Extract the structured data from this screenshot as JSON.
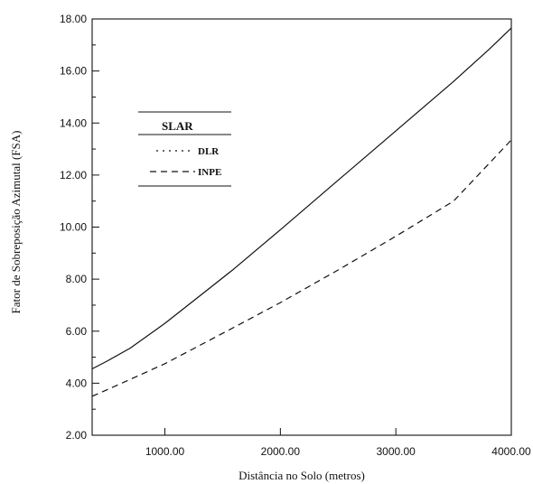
{
  "chart_data": {
    "type": "line",
    "title": "",
    "xlabel": "Distância no Solo (metros)",
    "ylabel": "Fator de Sobreposição Azimutal (FSA)",
    "xlim": [
      370,
      4000
    ],
    "ylim": [
      2,
      18
    ],
    "xticks": [
      1000,
      2000,
      3000,
      4000
    ],
    "xtick_labels": [
      "1000.00",
      "2000.00",
      "3000.00",
      "4000.00"
    ],
    "yticks": [
      2,
      4,
      6,
      8,
      10,
      12,
      14,
      16,
      18
    ],
    "ytick_labels": [
      "2.00",
      "4.00",
      "6.00",
      "8.00",
      "10.00",
      "12.00",
      "14.00",
      "16.00",
      "18.00"
    ],
    "grid": false,
    "legend": {
      "title": "SLAR",
      "placement": "upper-left"
    },
    "series": [
      {
        "name": "",
        "style": "solid",
        "color": "#111111",
        "x": [
          370,
          500,
          700,
          1000,
          1300,
          1600,
          2000,
          2500,
          3000,
          3500,
          3800,
          4000
        ],
        "y": [
          4.55,
          4.85,
          5.35,
          6.3,
          7.35,
          8.4,
          9.9,
          11.8,
          13.7,
          15.6,
          16.8,
          17.65
        ]
      },
      {
        "name": "DLR",
        "style": "dotted",
        "color": "#111111",
        "x": [],
        "y": []
      },
      {
        "name": "INPE",
        "style": "dashed",
        "color": "#111111",
        "x": [
          370,
          500,
          700,
          1000,
          1300,
          1600,
          2000,
          2500,
          3000,
          3500,
          4000
        ],
        "y": [
          3.5,
          3.75,
          4.15,
          4.75,
          5.45,
          6.15,
          7.1,
          8.35,
          9.65,
          11.0,
          13.35
        ]
      }
    ]
  }
}
